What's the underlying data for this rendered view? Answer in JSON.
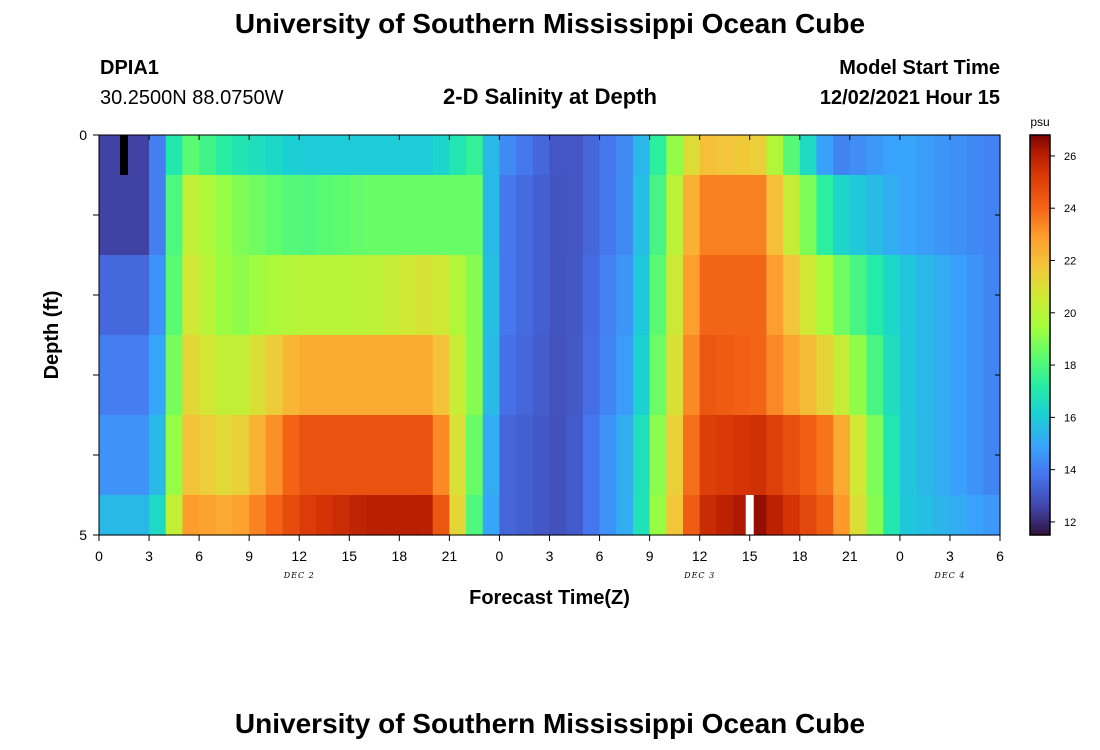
{
  "page": {
    "title": "University of Southern Mississippi Ocean Cube",
    "title_repeat": "University of Southern Mississippi Ocean Cube",
    "station_id": "DPIA1",
    "coordinates": "30.2500N  88.0750W",
    "plot_title": "2-D Salinity at Depth",
    "model_start_label": "Model Start Time",
    "model_start_value": "12/02/2021 Hour 15"
  },
  "chart_data": {
    "type": "heatmap",
    "title": "2-D Salinity at Depth",
    "xlabel": "Forecast Time(Z)",
    "ylabel": "Depth (ft)",
    "x_hours_start": 0,
    "x_hours_end": 54,
    "x_tick_labels": [
      "0",
      "3",
      "6",
      "9",
      "12",
      "15",
      "18",
      "21",
      "0",
      "3",
      "6",
      "9",
      "12",
      "15",
      "18",
      "21",
      "0",
      "3",
      "6"
    ],
    "date_labels": [
      {
        "label": "DEC 2",
        "hour": 12
      },
      {
        "label": "DEC 3",
        "hour": 36
      },
      {
        "label": "DEC 4",
        "hour": 51
      }
    ],
    "y_tick_labels": [
      {
        "label": "0",
        "depth": 0
      },
      {
        "label": "5",
        "depth": 5
      }
    ],
    "ylim": [
      5,
      0
    ],
    "colorbar": {
      "unit": "psu",
      "min": 11.5,
      "max": 26.8,
      "ticks": [
        12,
        14,
        16,
        18,
        20,
        22,
        24,
        26
      ]
    },
    "depth_layers": [
      0,
      1,
      2,
      3,
      4,
      5
    ],
    "keyframe_hours": [
      0,
      3,
      4,
      5,
      8,
      12,
      16,
      20,
      22.5,
      24,
      28,
      32,
      36,
      39.5,
      44,
      48,
      54
    ],
    "salinity_rows": [
      [
        12.5,
        12.5,
        15.5,
        18.5,
        17,
        16,
        16,
        16,
        17.5,
        14.5,
        12.8,
        14.5,
        22,
        21.5,
        14,
        15,
        14
      ],
      [
        12.5,
        12.5,
        15.5,
        20.5,
        19,
        18,
        18.5,
        18.5,
        18.5,
        14,
        12.8,
        14.5,
        23.5,
        23.5,
        16.5,
        15,
        14
      ],
      [
        13.5,
        13.5,
        15.5,
        21,
        19,
        20,
        20,
        21,
        19,
        14,
        12.8,
        14.8,
        24,
        24,
        19,
        16,
        14
      ],
      [
        14,
        14,
        16,
        21.5,
        20,
        22.5,
        22.5,
        22.5,
        19,
        13.8,
        12.8,
        15,
        24.5,
        24,
        21,
        16,
        14
      ],
      [
        14.5,
        14.5,
        16.5,
        22,
        21,
        24.5,
        24.5,
        24.5,
        18.5,
        13.5,
        12.8,
        15.5,
        25,
        25.5,
        23.5,
        16,
        14
      ],
      [
        15.5,
        15.5,
        17.5,
        23,
        22.5,
        25,
        26,
        26,
        18,
        13.5,
        12.8,
        15.5,
        25.5,
        26.5,
        24,
        16,
        14.5
      ]
    ],
    "markers": [
      {
        "type": "now",
        "color": "#000000",
        "hour": 1.5,
        "depth_top": 0,
        "depth_bottom": 0.5
      },
      {
        "type": "model-start",
        "color": "#ffffff",
        "hour": 39,
        "depth_top": 4.5,
        "depth_bottom": 5
      }
    ]
  }
}
